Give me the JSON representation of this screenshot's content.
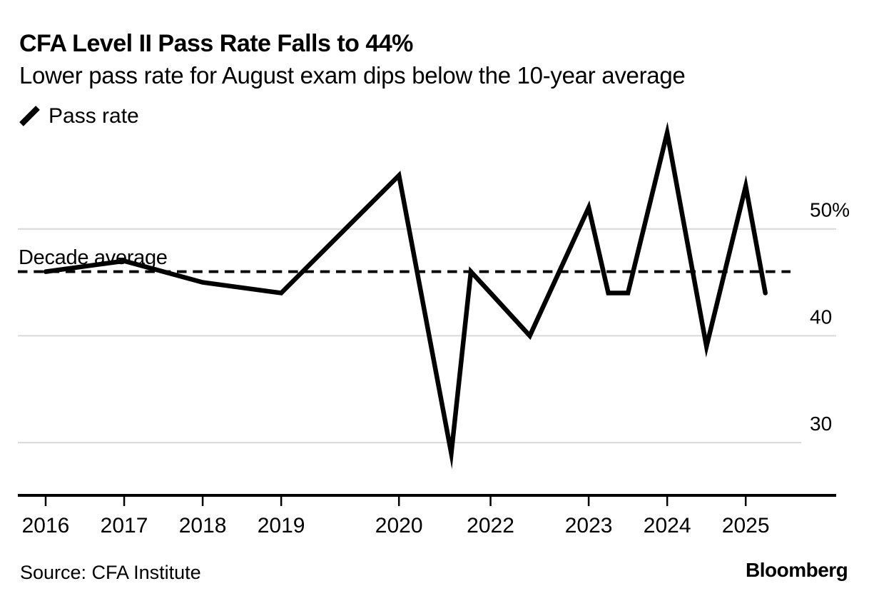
{
  "header": {
    "title": "CFA Level II Pass Rate Falls to 44%",
    "subtitle": "Lower pass rate for August exam dips below the 10-year average"
  },
  "legend": {
    "label": "Pass rate"
  },
  "annotations": {
    "average_label": "Decade average"
  },
  "footer": {
    "source": "Source: CFA Institute",
    "brand": "Bloomberg"
  },
  "colors": {
    "line": "#000000",
    "average_line": "#000000",
    "grid": "#d9d9d9",
    "axis": "#000000",
    "text": "#000000",
    "background": "#ffffff"
  },
  "chart_data": {
    "type": "line",
    "title": "CFA Level II Pass Rate Falls to 44%",
    "subtitle": "Lower pass rate for August exam dips below the 10-year average",
    "series_name": "Pass rate",
    "unit": "%",
    "points": [
      {
        "date": "2016-06",
        "value": 46
      },
      {
        "date": "2017-06",
        "value": 47
      },
      {
        "date": "2018-06",
        "value": 45
      },
      {
        "date": "2019-06",
        "value": 44
      },
      {
        "date": "2020-12",
        "value": 55
      },
      {
        "date": "2021-08",
        "value": 29
      },
      {
        "date": "2021-11",
        "value": 46
      },
      {
        "date": "2022-02",
        "value": 44
      },
      {
        "date": "2022-08",
        "value": 40
      },
      {
        "date": "2022-11",
        "value": 44
      },
      {
        "date": "2023-05",
        "value": 52
      },
      {
        "date": "2023-08",
        "value": 44
      },
      {
        "date": "2023-11",
        "value": 44
      },
      {
        "date": "2024-05",
        "value": 59
      },
      {
        "date": "2024-11",
        "value": 39
      },
      {
        "date": "2025-05",
        "value": 54
      },
      {
        "date": "2025-08",
        "value": 44
      }
    ],
    "decade_average": 46,
    "y_ticks": [
      {
        "value": 50,
        "label": "50%"
      },
      {
        "value": 40,
        "label": "40"
      },
      {
        "value": 30,
        "label": "30"
      }
    ],
    "x_ticks": [
      {
        "date": "2016-06",
        "label": "2016"
      },
      {
        "date": "2017-06",
        "label": "2017"
      },
      {
        "date": "2018-06",
        "label": "2018"
      },
      {
        "date": "2019-06",
        "label": "2019"
      },
      {
        "date": "2020-12",
        "label": "2020"
      },
      {
        "date": "2022-02",
        "label": "2022"
      },
      {
        "date": "2023-05",
        "label": "2023"
      },
      {
        "date": "2024-05",
        "label": "2024"
      },
      {
        "date": "2025-05",
        "label": "2025"
      }
    ],
    "ylim": [
      26,
      62
    ],
    "grid": true,
    "legend_position": "top-left"
  }
}
